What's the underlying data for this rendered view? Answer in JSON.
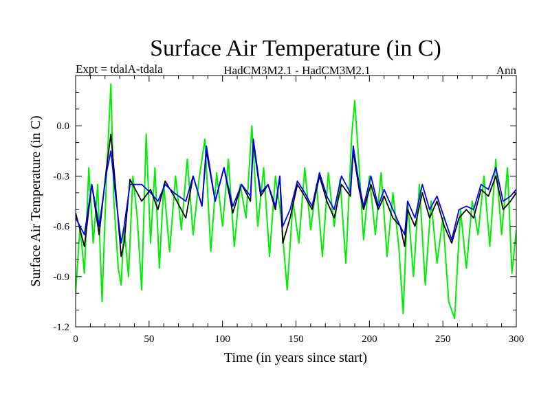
{
  "chart_data": {
    "type": "line",
    "title": "Surface Air Temperature (in C)",
    "subtitle_left": "Expt = tdalA-tdala",
    "subtitle_center": "HadCM3M2.1 - HadCM3M2.1",
    "subtitle_right": "Ann",
    "xlabel": "Time (in years since start)",
    "ylabel": "Surface Air Temperature (in C)",
    "xlim": [
      0,
      300
    ],
    "ylim": [
      -1.2,
      0.3
    ],
    "xticks": [
      0,
      50,
      100,
      150,
      200,
      250,
      300
    ],
    "xtick_labels": [
      "0",
      "50",
      "100",
      "150",
      "200",
      "250",
      "300"
    ],
    "yticks": [
      -1.2,
      -0.9,
      -0.6,
      -0.3,
      0.0
    ],
    "ytick_labels": [
      "-1.2",
      "-0.9",
      "-0.6",
      "-0.3",
      "0.0"
    ],
    "grid": false,
    "series": [
      {
        "name": "black",
        "color": "#000000",
        "x": [
          0,
          6,
          11,
          16,
          21,
          24,
          27,
          31,
          33,
          37,
          45,
          51,
          56,
          61,
          67,
          75,
          80,
          86,
          89,
          95,
          101,
          107,
          113,
          119,
          121,
          126,
          131,
          136,
          139,
          141,
          146,
          151,
          156,
          161,
          166,
          171,
          176,
          181,
          187,
          189,
          193,
          196,
          201,
          206,
          210,
          216,
          221,
          224,
          226,
          231,
          236,
          241,
          246,
          251,
          256,
          261,
          266,
          271,
          276,
          281,
          286,
          291,
          296,
          300
        ],
        "values": [
          -0.52,
          -0.72,
          -0.35,
          -0.65,
          -0.25,
          -0.05,
          -0.35,
          -0.78,
          -0.7,
          -0.32,
          -0.45,
          -0.38,
          -0.5,
          -0.33,
          -0.42,
          -0.55,
          -0.3,
          -0.48,
          -0.15,
          -0.45,
          -0.25,
          -0.52,
          -0.35,
          -0.45,
          -0.1,
          -0.42,
          -0.35,
          -0.5,
          -0.3,
          -0.7,
          -0.55,
          -0.35,
          -0.42,
          -0.5,
          -0.3,
          -0.45,
          -0.55,
          -0.35,
          -0.42,
          -0.15,
          -0.38,
          -0.5,
          -0.35,
          -0.5,
          -0.42,
          -0.55,
          -0.6,
          -0.72,
          -0.5,
          -0.6,
          -0.4,
          -0.55,
          -0.45,
          -0.6,
          -0.7,
          -0.55,
          -0.5,
          -0.55,
          -0.38,
          -0.42,
          -0.3,
          -0.5,
          -0.45,
          -0.4
        ]
      },
      {
        "name": "blue",
        "color": "#0000ff",
        "x": [
          0,
          6,
          11,
          16,
          21,
          24,
          27,
          31,
          33,
          37,
          45,
          51,
          56,
          61,
          67,
          75,
          80,
          86,
          89,
          95,
          101,
          107,
          113,
          119,
          121,
          126,
          131,
          136,
          139,
          141,
          146,
          151,
          156,
          161,
          166,
          171,
          176,
          181,
          187,
          189,
          193,
          196,
          201,
          206,
          210,
          216,
          221,
          224,
          226,
          231,
          236,
          241,
          246,
          251,
          256,
          261,
          266,
          271,
          276,
          281,
          286,
          291,
          296,
          300
        ],
        "values": [
          -0.55,
          -0.65,
          -0.35,
          -0.6,
          -0.28,
          -0.15,
          -0.4,
          -0.7,
          -0.6,
          -0.35,
          -0.35,
          -0.4,
          -0.45,
          -0.35,
          -0.4,
          -0.45,
          -0.3,
          -0.48,
          -0.12,
          -0.45,
          -0.25,
          -0.48,
          -0.35,
          -0.42,
          -0.08,
          -0.4,
          -0.35,
          -0.48,
          -0.3,
          -0.6,
          -0.5,
          -0.33,
          -0.4,
          -0.48,
          -0.28,
          -0.42,
          -0.5,
          -0.3,
          -0.4,
          -0.12,
          -0.35,
          -0.48,
          -0.3,
          -0.48,
          -0.38,
          -0.5,
          -0.6,
          -0.65,
          -0.45,
          -0.55,
          -0.35,
          -0.5,
          -0.42,
          -0.55,
          -0.68,
          -0.5,
          -0.48,
          -0.5,
          -0.35,
          -0.38,
          -0.25,
          -0.45,
          -0.42,
          -0.38
        ]
      },
      {
        "name": "green",
        "color": "#00ee00",
        "x": [
          0,
          3,
          6,
          9,
          12,
          15,
          18,
          21,
          24,
          26,
          29,
          31,
          33,
          36,
          39,
          42,
          45,
          48,
          51,
          54,
          57,
          60,
          64,
          68,
          72,
          76,
          80,
          84,
          88,
          92,
          96,
          100,
          104,
          108,
          112,
          116,
          120,
          124,
          128,
          132,
          136,
          140,
          144,
          148,
          152,
          156,
          160,
          164,
          168,
          172,
          176,
          180,
          184,
          188,
          190,
          193,
          196,
          200,
          204,
          208,
          212,
          216,
          220,
          223,
          226,
          230,
          234,
          238,
          242,
          246,
          250,
          254,
          258,
          262,
          266,
          270,
          274,
          278,
          282,
          286,
          290,
          294,
          297,
          300
        ],
        "values": [
          -1.0,
          -0.6,
          -0.88,
          -0.25,
          -0.7,
          -0.35,
          -1.05,
          -0.3,
          0.25,
          -0.45,
          -0.85,
          -0.95,
          -0.6,
          -0.9,
          -0.3,
          -0.55,
          -0.98,
          -0.05,
          -0.7,
          -0.25,
          -0.85,
          -0.35,
          -0.75,
          -0.3,
          -0.62,
          -0.2,
          -0.65,
          -0.32,
          -0.08,
          -0.75,
          -0.28,
          -0.6,
          -0.2,
          -0.72,
          -0.35,
          -0.55,
          0.0,
          -0.6,
          -0.25,
          -0.78,
          -0.3,
          -0.55,
          -0.98,
          -0.45,
          -0.7,
          -0.25,
          -0.62,
          -0.35,
          -0.78,
          -0.28,
          -0.6,
          -0.32,
          -0.82,
          -0.05,
          0.15,
          -0.25,
          -0.68,
          -0.3,
          -0.65,
          -0.28,
          -0.78,
          -0.4,
          -0.72,
          -1.12,
          -0.45,
          -0.9,
          -0.35,
          -0.95,
          -0.45,
          -0.82,
          -0.55,
          -1.05,
          -1.15,
          -0.5,
          -0.85,
          -0.45,
          -0.65,
          -0.3,
          -0.72,
          -0.2,
          -0.65,
          -0.25,
          -0.88,
          -0.62
        ]
      }
    ]
  }
}
